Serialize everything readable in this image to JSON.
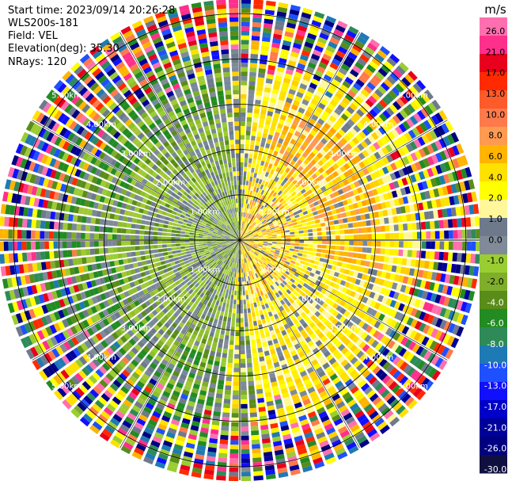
{
  "header": {
    "start_time": "Start time: 2023/09/14 20:26:28",
    "instrument": "WLS200s-181",
    "field": "Field: VEL",
    "elevation": "Elevation(deg): 35.30",
    "nrays": "NRays: 120"
  },
  "chart_data": {
    "type": "heatmap",
    "projection": "polar PPI",
    "range_ring_labels": [
      "1.00km",
      "2.00km",
      "3.00km",
      "4.00km",
      "5.00km"
    ],
    "max_range_km": 5.3,
    "n_rays": 120,
    "colorbar": {
      "unit": "m/s",
      "ticks": [
        "26.0",
        "21.0",
        "17.0",
        "13.0",
        "10.0",
        "8.0",
        "6.0",
        "4.0",
        "2.0",
        "1.0",
        "0.0",
        "-1.0",
        "-2.0",
        "-4.0",
        "-6.0",
        "-8.0",
        "-10.0",
        "-13.0",
        "-17.0",
        "-21.0",
        "-26.0",
        "-30.0"
      ],
      "colors": [
        "#ff6fb0",
        "#ff2f8c",
        "#e8001c",
        "#ff2a00",
        "#ff5a2a",
        "#ff7a4a",
        "#ff9a50",
        "#ffb400",
        "#ffe100",
        "#ffff00",
        "#fff79a",
        "#6e7a8c",
        "#808a98",
        "#9acd32",
        "#7fae2a",
        "#5a8c1a",
        "#228b22",
        "#2e8b57",
        "#1e7ab4",
        "#1e50ff",
        "#1010ff",
        "#0000c8",
        "#00009a",
        "#000080",
        "#101040"
      ]
    }
  }
}
